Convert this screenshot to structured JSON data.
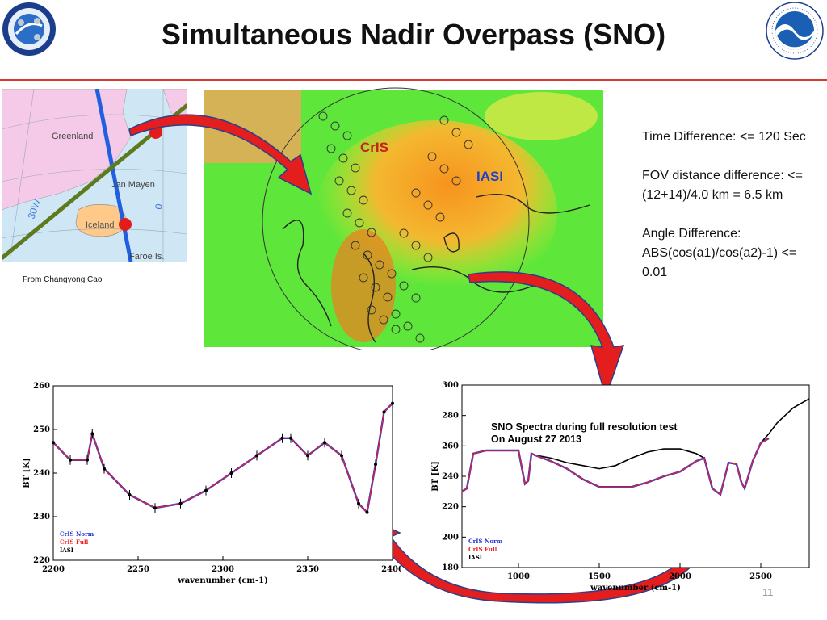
{
  "slide": {
    "title": "Simultaneous Nadir Overpass (SNO)",
    "page_number": "11",
    "left_logo_text": "NOAA NESDIS STAR",
    "right_logo_text": "NOAA"
  },
  "inset_map": {
    "labels": [
      "Greenland",
      "Jan Mayen",
      "Iceland",
      "Faroe Is.",
      "30W",
      "0"
    ],
    "credit": "From Changyong Cao"
  },
  "footprint_map": {
    "labels": [
      "CrIS",
      "IASI"
    ],
    "colors": {
      "cris": "#c8201c",
      "iasi": "#1e3fc8"
    }
  },
  "notes": {
    "time_difference": "Time Difference: <= 120 Sec",
    "fov_difference": "FOV distance difference: <=(12+14)/4.0 km = 6.5 km",
    "angle_difference": "Angle Difference: ABS(cos(a1)/cos(a2)-1) <= 0.01"
  },
  "chart_data": [
    {
      "type": "line",
      "xlabel": "wavenumber (cm-1)",
      "ylabel": "BT [K]",
      "xlim": [
        2200,
        2400
      ],
      "ylim": [
        220,
        260
      ],
      "x_ticks": [
        2200,
        2250,
        2300,
        2350,
        2400
      ],
      "y_ticks": [
        220,
        230,
        240,
        250,
        260
      ],
      "x": [
        2200,
        2210,
        2220,
        2223,
        2230,
        2245,
        2260,
        2275,
        2290,
        2305,
        2320,
        2335,
        2340,
        2350,
        2360,
        2370,
        2380,
        2385,
        2390,
        2395,
        2400
      ],
      "series": [
        {
          "name": "CrIS Norm",
          "color": "#2233dd",
          "values": [
            247,
            243,
            243,
            249,
            241,
            235,
            232,
            233,
            236,
            240,
            244,
            248,
            248,
            244,
            247,
            244,
            233,
            231,
            242,
            254,
            256
          ]
        },
        {
          "name": "CrIS Full",
          "color": "#ee2222",
          "values": [
            247,
            243,
            243,
            249,
            241,
            235,
            232,
            233,
            236,
            240,
            244,
            248,
            248,
            244,
            247,
            244,
            233,
            231,
            242,
            254,
            256
          ]
        },
        {
          "name": "IASI",
          "color": "#000000",
          "values": [
            247,
            243,
            243,
            249,
            241,
            235,
            232,
            233,
            236,
            240,
            244,
            248,
            248,
            244,
            247,
            244,
            233,
            231,
            242,
            254,
            256
          ]
        }
      ]
    },
    {
      "type": "line",
      "title": "SNO Spectra during full resolution test\nOn August 27 2013",
      "xlabel": "wavenumber (cm-1)",
      "ylabel": "BT [K]",
      "xlim": [
        650,
        2800
      ],
      "ylim": [
        180,
        300
      ],
      "x_ticks": [
        1000,
        1500,
        2000,
        2500
      ],
      "y_ticks": [
        180,
        200,
        220,
        240,
        260,
        280,
        300
      ],
      "x": [
        650,
        680,
        720,
        760,
        800,
        900,
        1000,
        1040,
        1060,
        1080,
        1100,
        1200,
        1300,
        1400,
        1500,
        1600,
        1700,
        1800,
        1900,
        2000,
        2100,
        2150,
        2200,
        2250,
        2300,
        2350,
        2380,
        2400,
        2450,
        2500,
        2550,
        2600,
        2650,
        2700,
        2750,
        2800
      ],
      "series": [
        {
          "name": "CrIS Norm",
          "color": "#2233dd",
          "values": [
            230,
            232,
            255,
            256,
            257,
            257,
            257,
            235,
            237,
            255,
            254,
            250,
            245,
            238,
            233,
            233,
            233,
            236,
            240,
            243,
            250,
            252,
            232,
            228,
            249,
            248,
            236,
            232,
            250,
            262,
            265,
            null,
            null,
            null,
            null,
            null
          ]
        },
        {
          "name": "CrIS Full",
          "color": "#ee2222",
          "values": [
            230,
            232,
            255,
            256,
            257,
            257,
            257,
            235,
            237,
            255,
            254,
            250,
            245,
            238,
            233,
            233,
            233,
            236,
            240,
            243,
            250,
            252,
            232,
            228,
            249,
            248,
            236,
            232,
            250,
            262,
            265,
            null,
            null,
            null,
            null,
            null
          ]
        },
        {
          "name": "IASI",
          "color": "#000000",
          "values": [
            230,
            232,
            255,
            256,
            257,
            257,
            257,
            235,
            237,
            255,
            254,
            252,
            249,
            247,
            245,
            247,
            252,
            256,
            258,
            258,
            255,
            252,
            232,
            228,
            249,
            248,
            236,
            232,
            250,
            262,
            268,
            275,
            280,
            285,
            288,
            291
          ]
        }
      ]
    }
  ]
}
